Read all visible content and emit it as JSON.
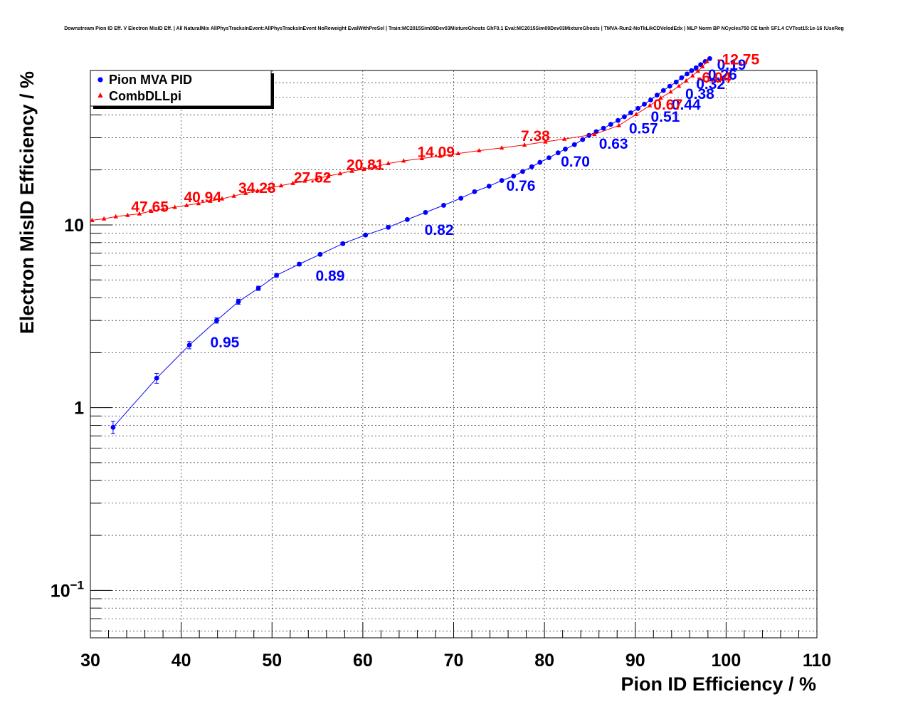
{
  "chart_data": {
    "type": "scatter",
    "title": "Downstream Pion ID Eff. V Electron MisID Eff. | All NaturalMix AllPhysTracksInEvent:AllPhysTracksInEvent NoReweight EvalWithPreSel | Train:MC2015Sim09Dev03MixtureGhosts GhF0.1 Eval:MC2015Sim09Dev03MixtureGhosts | TMVA-Run2-NoTkLikCDVelodEdx | MLP Norm BP NCycles750 CE tanh SF1.4 CVTest15:1e-16 !UseReg",
    "xlabel": "Pion ID Efficiency / %",
    "ylabel": "Electron MisID Efficiency / %",
    "xlim": [
      30,
      110
    ],
    "ylim": [
      0.055,
      70
    ],
    "ylog": true,
    "grid": true,
    "legend_position": "top-left",
    "x_ticks": [
      "30",
      "40",
      "50",
      "60",
      "70",
      "80",
      "90",
      "100",
      "110"
    ],
    "y_ticks": [
      {
        "value": 0.1,
        "mant": "10",
        "exp": "−1"
      },
      {
        "value": 1,
        "mant": "1",
        "exp": ""
      },
      {
        "value": 10,
        "mant": "10",
        "exp": ""
      }
    ],
    "series": [
      {
        "name": "Pion MVA PID",
        "color": "#0000ff",
        "marker": "circle",
        "x": [
          32.5,
          37.3,
          40.9,
          43.9,
          46.3,
          48.5,
          50.5,
          53,
          55.3,
          57.8,
          60.3,
          62.8,
          64.9,
          66.9,
          68.9,
          70.8,
          72.3,
          73.9,
          75.3,
          76.6,
          77.6,
          78.6,
          79.5,
          80.5,
          81.5,
          82.3,
          83.3,
          84.2,
          84.9,
          85.7,
          86.5,
          87.3,
          88.1,
          88.8,
          89.5,
          90.3,
          91,
          91.7,
          92.4,
          93.1,
          93.8,
          94.5,
          95.1,
          95.7,
          96.2,
          96.7,
          97.2,
          97.7,
          98.2
        ],
        "y": [
          0.78,
          1.45,
          2.2,
          3.0,
          3.8,
          4.5,
          5.3,
          6.1,
          6.9,
          7.9,
          8.8,
          9.7,
          10.7,
          11.7,
          12.8,
          14.0,
          15.2,
          16.3,
          17.5,
          18.5,
          19.6,
          20.8,
          22.0,
          23.3,
          24.8,
          26.0,
          27.5,
          29.3,
          30.9,
          32.4,
          33.8,
          35.5,
          37.3,
          39.1,
          41.1,
          43.4,
          45.8,
          48.3,
          51.3,
          54.4,
          57.4,
          60.5,
          63.9,
          67.0,
          69.9,
          72.5,
          75.4,
          78.4,
          81.3
        ],
        "yerr": [
          0.06,
          0.09,
          0.1,
          0.1,
          0.12,
          0.12,
          0.12,
          0.12,
          0.12,
          0.13,
          0.14,
          0.14,
          0.15,
          0.16,
          0.17,
          0.18,
          0.19,
          0.2,
          0.2,
          0.21,
          0.22,
          0.23,
          0.24,
          0.25,
          0.26,
          0.27,
          0.28,
          0.29,
          0.3,
          0.31,
          0.32,
          0.33,
          0.34,
          0.35,
          0.36,
          0.37,
          0.38,
          0.39,
          0.4,
          0.41,
          0.42,
          0.43,
          0.44,
          0.45,
          0.46,
          0.47,
          0.48,
          0.49,
          0.5
        ]
      },
      {
        "name": "CombDLLpi",
        "color": "#ff0000",
        "marker": "triangle",
        "x": [
          30.2,
          31.5,
          32.8,
          34.1,
          35.4,
          36.7,
          38,
          39.3,
          40.6,
          41.9,
          43.2,
          44.5,
          45.8,
          47.1,
          48.4,
          49.7,
          51,
          52.3,
          53.6,
          54.9,
          56.2,
          57.5,
          58.8,
          60.1,
          61.4,
          62.8,
          64.5,
          66.5,
          68.5,
          70.5,
          72.8,
          75.3,
          77.8,
          80.1,
          82.2,
          85.5,
          88.2,
          90.1,
          91.6,
          92.8,
          93.9,
          94.8,
          95.6,
          96.3,
          96.9,
          97.4,
          97.9
        ],
        "y": [
          10.6,
          10.8,
          11.1,
          11.3,
          11.5,
          11.9,
          12.2,
          12.5,
          12.8,
          13.1,
          13.5,
          13.9,
          14.4,
          14.9,
          15.4,
          15.9,
          16.4,
          16.9,
          17.4,
          17.9,
          18.5,
          19.1,
          19.7,
          20.2,
          20.8,
          21.7,
          22.4,
          23.1,
          23.8,
          24.6,
          25.5,
          26.4,
          27.4,
          28.5,
          29.5,
          31.3,
          35.0,
          40.3,
          45.0,
          49.5,
          53.5,
          57.5,
          61.5,
          65.5,
          69.5,
          73.5,
          78.5
        ]
      }
    ],
    "annotations": [
      {
        "text": "0.95",
        "x": 43.2,
        "y": 2.3,
        "series": 0
      },
      {
        "text": "0.89",
        "x": 54.8,
        "y": 5.3,
        "series": 0
      },
      {
        "text": "0.82",
        "x": 66.8,
        "y": 9.45,
        "series": 0
      },
      {
        "text": "0.76",
        "x": 75.8,
        "y": 16.5,
        "series": 0
      },
      {
        "text": "0.70",
        "x": 81.8,
        "y": 22.4,
        "series": 0
      },
      {
        "text": "0.63",
        "x": 86.0,
        "y": 28.0,
        "series": 0
      },
      {
        "text": "0.57",
        "x": 89.3,
        "y": 34.0,
        "series": 0
      },
      {
        "text": "0.51",
        "x": 91.7,
        "y": 39.5,
        "series": 0
      },
      {
        "text": "0.44",
        "x": 94.0,
        "y": 46.0,
        "series": 0
      },
      {
        "text": "0.38",
        "x": 95.5,
        "y": 52.5,
        "series": 0
      },
      {
        "text": "0.32",
        "x": 96.7,
        "y": 59.5,
        "series": 0
      },
      {
        "text": "0.26",
        "x": 98.0,
        "y": 67.0,
        "series": 0
      },
      {
        "text": "0.19",
        "x": 99.0,
        "y": 76.0,
        "series": 0
      },
      {
        "text": "47.65",
        "x": 34.5,
        "y": 12.7,
        "series": 1
      },
      {
        "text": "40.94",
        "x": 40.3,
        "y": 14.3,
        "series": 1
      },
      {
        "text": "34.23",
        "x": 46.3,
        "y": 16.1,
        "series": 1
      },
      {
        "text": "27.52",
        "x": 52.4,
        "y": 18.3,
        "series": 1
      },
      {
        "text": "20.81",
        "x": 58.2,
        "y": 21.5,
        "series": 1
      },
      {
        "text": "14.09",
        "x": 66.0,
        "y": 25.3,
        "series": 1
      },
      {
        "text": "7.38",
        "x": 77.4,
        "y": 31.0,
        "series": 1
      },
      {
        "text": "0.67",
        "x": 92.0,
        "y": 46.0,
        "series": 1
      },
      {
        "text": "-6.04",
        "x": 96.8,
        "y": 64.5,
        "series": 1
      },
      {
        "text": "-12.75",
        "x": 99.0,
        "y": 81.0,
        "series": 1
      }
    ]
  }
}
